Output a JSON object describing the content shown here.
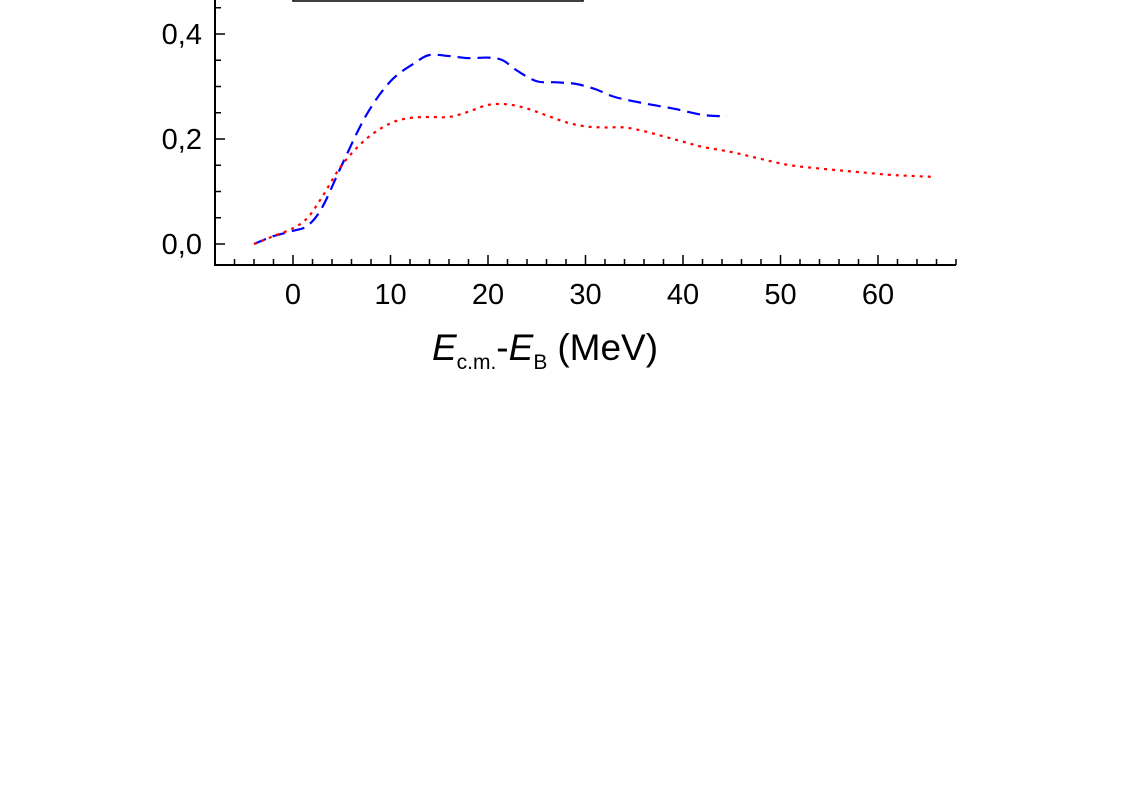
{
  "chart_data": {
    "type": "line",
    "title": "",
    "xlabel": {
      "main": "E",
      "main_sub": "c.m.",
      "sep": "-",
      "second": "E",
      "second_sub": "B",
      "unit": "(MeV)"
    },
    "ylabel": "",
    "xlim": [
      -8,
      68
    ],
    "ylim": [
      -0.04,
      0.465
    ],
    "x_ticks": [
      0,
      10,
      20,
      30,
      40,
      50,
      60
    ],
    "x_tick_labels": [
      "0",
      "10",
      "20",
      "30",
      "40",
      "50",
      "60"
    ],
    "y_ticks": [
      0.0,
      0.2,
      0.4
    ],
    "y_tick_labels": [
      "0,0",
      "0,2",
      "0,4"
    ],
    "grid": false,
    "legend": "top-left, partially cropped (only box border visible)",
    "series": [
      {
        "color": "#0000ff",
        "dash": "dashed",
        "x": [
          -4,
          -2,
          0,
          1.5,
          3,
          5,
          7.5,
          10,
          12.5,
          14,
          16,
          18,
          20,
          21.5,
          23,
          25,
          27,
          29,
          31,
          33,
          36,
          39,
          42,
          44.5
        ],
        "y": [
          0.0,
          0.015,
          0.025,
          0.035,
          0.07,
          0.15,
          0.245,
          0.31,
          0.345,
          0.36,
          0.358,
          0.354,
          0.355,
          0.35,
          0.33,
          0.31,
          0.308,
          0.305,
          0.295,
          0.28,
          0.268,
          0.258,
          0.246,
          0.243
        ]
      },
      {
        "color": "#ff0000",
        "dash": "dotted",
        "x": [
          -4,
          -2,
          0,
          1.5,
          3,
          5,
          7.5,
          10,
          12,
          14,
          16,
          18,
          20,
          22,
          24,
          26,
          28,
          30,
          32,
          34,
          36,
          38,
          40,
          42,
          45,
          48,
          51,
          55,
          58,
          61,
          63,
          65.5
        ],
        "y": [
          0.0,
          0.015,
          0.03,
          0.05,
          0.09,
          0.15,
          0.2,
          0.23,
          0.24,
          0.242,
          0.242,
          0.252,
          0.265,
          0.266,
          0.258,
          0.245,
          0.232,
          0.224,
          0.222,
          0.222,
          0.215,
          0.205,
          0.195,
          0.185,
          0.175,
          0.162,
          0.15,
          0.142,
          0.137,
          0.132,
          0.13,
          0.128
        ]
      }
    ]
  }
}
